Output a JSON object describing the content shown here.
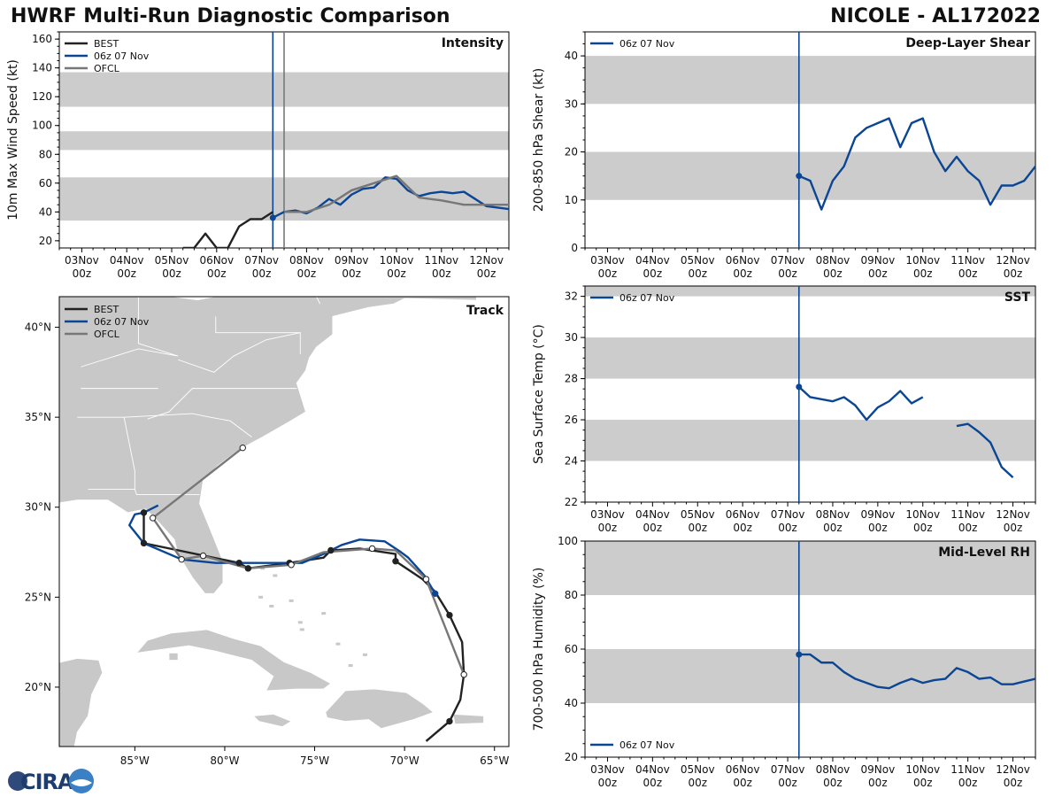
{
  "header": {
    "title_left": "HWRF Multi-Run Diagnostic Comparison",
    "title_right": "NICOLE - AL172022"
  },
  "logo": {
    "text": "CIRA"
  },
  "colors": {
    "best": "#222222",
    "run": "#0b4694",
    "ofcl": "#777777",
    "band": "#cccccc",
    "land": "#c8c8c8"
  },
  "time_axis": {
    "ticks": [
      {
        "day": 3,
        "label": "03Nov",
        "sub": "00z"
      },
      {
        "day": 4,
        "label": "04Nov",
        "sub": "00z"
      },
      {
        "day": 5,
        "label": "05Nov",
        "sub": "00z"
      },
      {
        "day": 6,
        "label": "06Nov",
        "sub": "00z"
      },
      {
        "day": 7,
        "label": "07Nov",
        "sub": "00z"
      },
      {
        "day": 8,
        "label": "08Nov",
        "sub": "00z"
      },
      {
        "day": 9,
        "label": "09Nov",
        "sub": "00z"
      },
      {
        "day": 10,
        "label": "10Nov",
        "sub": "00z"
      },
      {
        "day": 11,
        "label": "11Nov",
        "sub": "00z"
      },
      {
        "day": 12,
        "label": "12Nov",
        "sub": "00z"
      }
    ],
    "range": [
      2.5,
      12.5
    ]
  },
  "chart_data": [
    {
      "type": "line",
      "id": "intensity",
      "title": "Intensity",
      "xlabel": "",
      "ylabel": "10m Max Wind Speed (kt)",
      "ylim": [
        15,
        165
      ],
      "yticks": [
        20,
        40,
        60,
        80,
        100,
        120,
        140,
        160
      ],
      "bands": [
        [
          34,
          64
        ],
        [
          83,
          96
        ],
        [
          113,
          137
        ]
      ],
      "vlines": [
        {
          "x": 7.25,
          "series": "run"
        },
        {
          "x": 7.5,
          "series": "ofcl"
        }
      ],
      "legend": {
        "position": "top-left",
        "entries": [
          "BEST",
          "06z 07 Nov",
          "OFCL"
        ]
      },
      "series": [
        {
          "name": "BEST",
          "key": "best",
          "x": [
            5.25,
            5.5,
            5.75,
            6.0,
            6.25,
            6.5,
            6.75,
            7.0,
            7.25
          ],
          "y": [
            15,
            15,
            25,
            15,
            15,
            30,
            35,
            35,
            40
          ]
        },
        {
          "name": "06z 07 Nov",
          "key": "run",
          "x": [
            7.25,
            7.5,
            7.75,
            8.0,
            8.25,
            8.5,
            8.75,
            9.0,
            9.25,
            9.5,
            9.75,
            10.0,
            10.25,
            10.5,
            10.75,
            11.0,
            11.25,
            11.5,
            11.75,
            12.0,
            12.25,
            12.5
          ],
          "y": [
            36,
            40,
            41,
            39,
            43,
            49,
            45,
            52,
            56,
            57,
            64,
            63,
            55,
            51,
            53,
            54,
            53,
            54,
            49,
            44,
            43,
            42
          ],
          "marker_first": true
        },
        {
          "name": "OFCL",
          "key": "ofcl",
          "x": [
            7.5,
            8.0,
            8.5,
            9.0,
            9.5,
            10.0,
            10.5,
            11.0,
            11.5,
            12.0,
            12.5
          ],
          "y": [
            40,
            40,
            45,
            55,
            60,
            65,
            50,
            48,
            45,
            45,
            45
          ]
        }
      ]
    },
    {
      "type": "line",
      "id": "shear",
      "title": "Deep-Layer Shear",
      "xlabel": "",
      "ylabel": "200-850 hPa Shear (kt)",
      "ylim": [
        0,
        45
      ],
      "yticks": [
        0,
        10,
        20,
        30,
        40
      ],
      "bands": [
        [
          10,
          20
        ],
        [
          30,
          40
        ]
      ],
      "vlines": [
        {
          "x": 7.25,
          "series": "run"
        }
      ],
      "legend": {
        "position": "top-left",
        "entries": [
          "06z 07 Nov"
        ]
      },
      "series": [
        {
          "name": "06z 07 Nov",
          "key": "run",
          "x": [
            7.25,
            7.5,
            7.75,
            8.0,
            8.25,
            8.5,
            8.75,
            9.0,
            9.25,
            9.5,
            9.75,
            10.0,
            10.25,
            10.5,
            10.75,
            11.0,
            11.25,
            11.5,
            11.75,
            12.0,
            12.25,
            12.5
          ],
          "y": [
            15,
            14,
            8,
            14,
            17,
            23,
            25,
            26,
            27,
            21,
            26,
            27,
            20,
            16,
            19,
            16,
            14,
            9,
            13,
            13,
            14,
            17
          ],
          "marker_first": true
        }
      ]
    },
    {
      "type": "line",
      "id": "sst",
      "title": "SST",
      "xlabel": "",
      "ylabel": "Sea Surface Temp (°C)",
      "ylim": [
        22,
        32.5
      ],
      "yticks": [
        22,
        24,
        26,
        28,
        30,
        32
      ],
      "bands": [
        [
          24,
          26
        ],
        [
          28,
          30
        ],
        [
          32,
          32.5
        ]
      ],
      "vlines": [
        {
          "x": 7.25,
          "series": "run"
        }
      ],
      "legend": {
        "position": "top-left",
        "entries": [
          "06z 07 Nov"
        ]
      },
      "series": [
        {
          "name": "06z 07 Nov",
          "key": "run",
          "x": [
            7.25,
            7.5,
            7.75,
            8.0,
            8.25,
            8.5,
            8.75,
            9.0,
            9.25,
            9.5,
            9.75,
            10.0
          ],
          "y": [
            27.6,
            27.1,
            27.0,
            26.9,
            27.1,
            26.7,
            26.0,
            26.6,
            26.9,
            27.4,
            26.8,
            27.1
          ],
          "marker_first": true
        },
        {
          "name": "06z 07 Nov (cont.)",
          "key": "run",
          "x": [
            10.75,
            11.0,
            11.25,
            11.5,
            11.75,
            12.0
          ],
          "y": [
            25.7,
            25.8,
            25.4,
            24.9,
            23.7,
            23.2
          ]
        }
      ]
    },
    {
      "type": "line",
      "id": "rh",
      "title": "Mid-Level RH",
      "xlabel": "",
      "ylabel": "700-500 hPa Humidity (%)",
      "ylim": [
        20,
        100
      ],
      "yticks": [
        20,
        40,
        60,
        80,
        100
      ],
      "bands": [
        [
          40,
          60
        ],
        [
          80,
          100
        ]
      ],
      "vlines": [
        {
          "x": 7.25,
          "series": "run"
        }
      ],
      "legend": {
        "position": "bottom-left",
        "entries": [
          "06z 07 Nov"
        ]
      },
      "series": [
        {
          "name": "06z 07 Nov",
          "key": "run",
          "x": [
            7.25,
            7.5,
            7.75,
            8.0,
            8.25,
            8.5,
            8.75,
            9.0,
            9.25,
            9.5,
            9.75,
            10.0,
            10.25,
            10.5,
            10.75,
            11.0,
            11.25,
            11.5,
            11.75,
            12.0,
            12.25,
            12.5
          ],
          "y": [
            58,
            58,
            55,
            55,
            51.5,
            49,
            47.5,
            46,
            45.5,
            47.5,
            49,
            47.5,
            48.5,
            49,
            53,
            51.5,
            49,
            49.5,
            47,
            47,
            48,
            49
          ],
          "marker_first": true
        }
      ]
    },
    {
      "type": "map",
      "id": "track",
      "title": "Track",
      "lon_range": [
        -89.2,
        -64.2
      ],
      "lat_range": [
        16.7,
        41.7
      ],
      "lon_ticks": [
        {
          "v": -85,
          "label": "85°W"
        },
        {
          "v": -80,
          "label": "80°W"
        },
        {
          "v": -75,
          "label": "75°W"
        },
        {
          "v": -70,
          "label": "70°W"
        },
        {
          "v": -65,
          "label": "65°W"
        }
      ],
      "lat_ticks": [
        {
          "v": 20,
          "label": "20°N"
        },
        {
          "v": 25,
          "label": "25°N"
        },
        {
          "v": 30,
          "label": "30°N"
        },
        {
          "v": 35,
          "label": "35°N"
        },
        {
          "v": 40,
          "label": "40°N"
        }
      ],
      "legend": {
        "position": "top-left",
        "entries": [
          "BEST",
          "06z 07 Nov",
          "OFCL"
        ]
      },
      "tracks": [
        {
          "name": "BEST",
          "key": "best",
          "lon": [
            -68.8,
            -67.5,
            -66.9,
            -66.7,
            -66.8,
            -67.5,
            -68.3,
            -69.0,
            -70.5,
            -70.5,
            -72.5,
            -74.1,
            -74.5,
            -76.4,
            -78.7,
            -79.2,
            -84.5,
            -84.5
          ],
          "lat": [
            17.0,
            18.1,
            19.3,
            20.7,
            22.5,
            24.0,
            25.3,
            26.0,
            27.0,
            27.4,
            27.7,
            27.6,
            27.2,
            26.9,
            26.6,
            26.9,
            28.0,
            29.7
          ],
          "markers": [
            1,
            5,
            8,
            11,
            13,
            14,
            15,
            16,
            17
          ]
        },
        {
          "name": "06z 07 Nov",
          "key": "run",
          "lon": [
            -68.3,
            -68.9,
            -69.8,
            -70.2,
            -71.1,
            -72.5,
            -73.5,
            -74.5,
            -75.7,
            -76.5,
            -79.0,
            -80.5,
            -82.4,
            -84.5,
            -85.3,
            -85.0,
            -84.5,
            -83.7
          ],
          "lat": [
            25.2,
            26.2,
            27.2,
            27.5,
            28.1,
            28.2,
            27.9,
            27.4,
            26.9,
            26.9,
            26.9,
            26.9,
            27.1,
            28.0,
            29.0,
            29.6,
            29.7,
            30.1
          ],
          "markers": [
            0
          ]
        },
        {
          "name": "OFCL",
          "key": "ofcl",
          "lon": [
            -66.7,
            -68.8,
            -70.5,
            -71.8,
            -74.5,
            -76.3,
            -78.7,
            -81.2,
            -82.4,
            -84.0,
            -79.0
          ],
          "lat": [
            20.7,
            26.0,
            27.6,
            27.7,
            27.5,
            26.8,
            26.6,
            27.3,
            27.1,
            29.4,
            33.3
          ],
          "markers": [
            0,
            1,
            3,
            5,
            7,
            8,
            9,
            10
          ],
          "marker_style": "open"
        }
      ]
    }
  ]
}
